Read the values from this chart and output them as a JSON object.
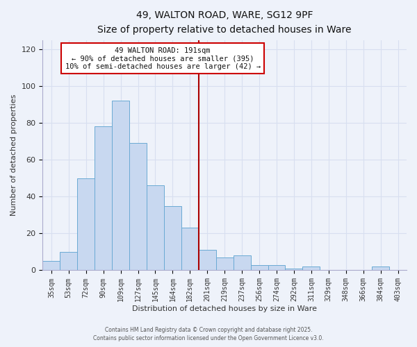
{
  "title1": "49, WALTON ROAD, WARE, SG12 9PF",
  "title2": "Size of property relative to detached houses in Ware",
  "xlabel": "Distribution of detached houses by size in Ware",
  "ylabel": "Number of detached properties",
  "categories": [
    "35sqm",
    "53sqm",
    "72sqm",
    "90sqm",
    "109sqm",
    "127sqm",
    "145sqm",
    "164sqm",
    "182sqm",
    "201sqm",
    "219sqm",
    "237sqm",
    "256sqm",
    "274sqm",
    "292sqm",
    "311sqm",
    "329sqm",
    "348sqm",
    "366sqm",
    "384sqm",
    "403sqm"
  ],
  "values": [
    5,
    10,
    50,
    78,
    92,
    69,
    46,
    35,
    23,
    11,
    7,
    8,
    3,
    3,
    1,
    2,
    0,
    0,
    0,
    2,
    0
  ],
  "bar_color": "#c8d8f0",
  "bar_edge_color": "#6aaad4",
  "bar_width": 1.0,
  "vline_color": "#aa0000",
  "ylim": [
    0,
    125
  ],
  "yticks": [
    0,
    20,
    40,
    60,
    80,
    100,
    120
  ],
  "annotation_title": "49 WALTON ROAD: 191sqm",
  "annotation_line1": "← 90% of detached houses are smaller (395)",
  "annotation_line2": "10% of semi-detached houses are larger (42) →",
  "annotation_box_facecolor": "#ffffff",
  "annotation_box_edgecolor": "#cc0000",
  "footer1": "Contains HM Land Registry data © Crown copyright and database right 2025.",
  "footer2": "Contains public sector information licensed under the Open Government Licence v3.0.",
  "background_color": "#eef2fa",
  "grid_color": "#d8dff0",
  "spine_color": "#aaaacc"
}
